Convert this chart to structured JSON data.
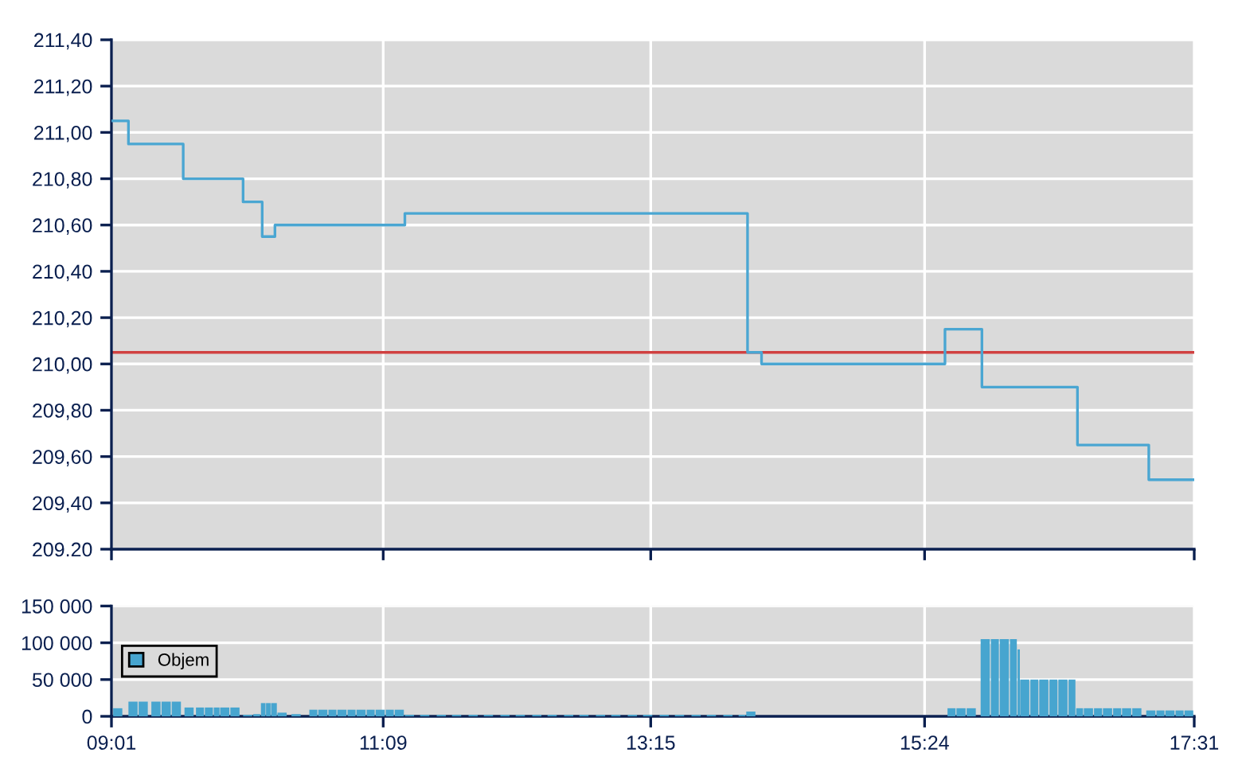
{
  "chart_data": [
    {
      "type": "step",
      "x": [
        9.0167,
        9.15,
        9.58,
        10.05,
        10.2,
        10.3,
        11.32,
        14.01,
        14.12,
        15.56,
        15.85,
        16.6,
        17.16,
        17.5167
      ],
      "values": [
        211.05,
        210.95,
        210.8,
        210.7,
        210.55,
        210.6,
        210.65,
        210.05,
        210.0,
        210.15,
        209.9,
        209.65,
        209.5,
        209.5
      ],
      "color": "#4aa6d2",
      "xlim": [
        9.0167,
        17.5167
      ],
      "xticks": [
        {
          "value": 9.0167,
          "label": null
        },
        {
          "value": 11.15,
          "label": null
        },
        {
          "value": 13.25,
          "label": null
        },
        {
          "value": 15.4,
          "label": null
        },
        {
          "value": 17.5167,
          "label": null
        }
      ],
      "ylim": [
        209.2,
        211.4
      ],
      "yticks": [
        {
          "value": 209.2,
          "label": "209.20"
        },
        {
          "value": 209.4,
          "label": "209,40"
        },
        {
          "value": 209.6,
          "label": "209,60"
        },
        {
          "value": 209.8,
          "label": "209,80"
        },
        {
          "value": 210.0,
          "label": "210,00"
        },
        {
          "value": 210.2,
          "label": "210,20"
        },
        {
          "value": 210.4,
          "label": "210,40"
        },
        {
          "value": 210.6,
          "label": "210,60"
        },
        {
          "value": 210.8,
          "label": "210,80"
        },
        {
          "value": 211.0,
          "label": "211,00"
        },
        {
          "value": 211.2,
          "label": "211,20"
        },
        {
          "value": 211.4,
          "label": "211,40"
        }
      ],
      "ref_lines": [
        {
          "axis": "y",
          "value": 210.05,
          "color": "#d04040"
        }
      ],
      "grid": true,
      "tick_labels": "y"
    },
    {
      "type": "bar",
      "series": [
        {
          "name": "Objem",
          "color": "#47a5cf",
          "x": [
            9.03,
            9.15,
            9.23,
            9.33,
            9.41,
            9.49,
            9.59,
            9.68,
            9.75,
            9.82,
            9.87,
            9.95,
            10.05,
            10.13,
            10.19,
            10.23,
            10.27,
            10.32,
            10.43,
            10.57,
            10.64,
            10.72,
            10.79,
            10.87,
            10.94,
            11.02,
            11.09,
            11.17,
            11.24,
            11.32,
            11.44,
            11.57,
            11.69,
            11.82,
            11.94,
            12.07,
            12.19,
            12.32,
            12.44,
            12.57,
            12.69,
            12.82,
            12.94,
            13.07,
            13.19,
            13.32,
            13.44,
            13.57,
            13.69,
            13.82,
            13.94,
            14.0,
            14.09,
            15.58,
            15.65,
            15.73,
            15.84,
            15.92,
            15.99,
            16.07,
            16.13,
            16.15,
            16.23,
            16.3,
            16.38,
            16.45,
            16.53,
            16.59,
            16.65,
            16.73,
            16.8,
            16.88,
            16.95,
            17.03,
            17.14,
            17.22,
            17.29,
            17.37,
            17.44
          ],
          "values": [
            11000,
            20000,
            20000,
            20000,
            20000,
            20000,
            12000,
            12000,
            12000,
            12000,
            12000,
            12000,
            2000,
            3000,
            18000,
            18000,
            18000,
            5000,
            3000,
            9000,
            9000,
            9000,
            9000,
            9000,
            9000,
            9000,
            9000,
            9000,
            9000,
            2000,
            2000,
            2000,
            2000,
            2000,
            2000,
            2000,
            2000,
            2000,
            2000,
            2000,
            2000,
            2000,
            2000,
            2000,
            2000,
            2000,
            2000,
            2000,
            2000,
            2000,
            2000,
            6500,
            null,
            11000,
            11000,
            11000,
            105000,
            105000,
            105000,
            105000,
            91000,
            50000,
            50000,
            50000,
            50000,
            50000,
            50000,
            11000,
            11000,
            11000,
            11000,
            11000,
            11000,
            11000,
            8000,
            8000,
            8000,
            8000,
            8000
          ]
        }
      ],
      "xlim": [
        9.0167,
        17.5167
      ],
      "xticks": [
        {
          "value": 9.0167,
          "label": "09:01"
        },
        {
          "value": 11.15,
          "label": "11:09"
        },
        {
          "value": 13.25,
          "label": "13:15"
        },
        {
          "value": 15.4,
          "label": "15:24"
        },
        {
          "value": 17.5167,
          "label": "17:31"
        }
      ],
      "ylim": [
        0,
        150000
      ],
      "yticks": [
        0,
        {
          "value": 50000,
          "label": "50 000"
        },
        {
          "value": 100000,
          "label": "100 000"
        },
        {
          "value": 150000,
          "label": "150 000"
        }
      ],
      "grid": true,
      "legend": "left"
    }
  ]
}
